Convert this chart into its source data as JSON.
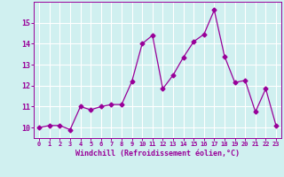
{
  "x": [
    0,
    1,
    2,
    3,
    4,
    5,
    6,
    7,
    8,
    9,
    10,
    11,
    12,
    13,
    14,
    15,
    16,
    17,
    18,
    19,
    20,
    21,
    22,
    23
  ],
  "y": [
    10.0,
    10.1,
    10.1,
    9.9,
    11.0,
    10.85,
    11.0,
    11.1,
    11.1,
    12.2,
    14.0,
    14.4,
    11.85,
    12.5,
    13.35,
    14.1,
    14.45,
    15.6,
    13.4,
    12.15,
    12.25,
    10.75,
    11.85,
    10.1
  ],
  "line_color": "#990099",
  "marker": "D",
  "marker_size": 2.5,
  "bg_color": "#d0f0f0",
  "grid_color": "#ffffff",
  "xlabel": "Windchill (Refroidissement éolien,°C)",
  "xlabel_color": "#990099",
  "tick_color": "#990099",
  "ylim": [
    9.5,
    16.0
  ],
  "xlim": [
    -0.5,
    23.5
  ],
  "yticks": [
    10,
    11,
    12,
    13,
    14,
    15
  ],
  "xticks": [
    0,
    1,
    2,
    3,
    4,
    5,
    6,
    7,
    8,
    9,
    10,
    11,
    12,
    13,
    14,
    15,
    16,
    17,
    18,
    19,
    20,
    21,
    22,
    23
  ]
}
